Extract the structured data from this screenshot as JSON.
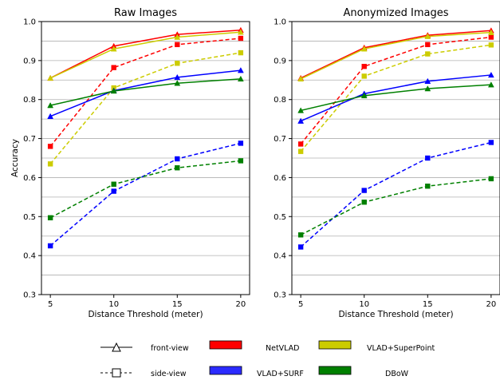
{
  "chart_data": [
    {
      "type": "line",
      "title": "Raw Images",
      "xlabel": "Distance Threshold (meter)",
      "ylabel": "Accuracy",
      "x": [
        5,
        10,
        15,
        20
      ],
      "xticks": [
        "5",
        "10",
        "15",
        "20"
      ],
      "ylim": [
        0.3,
        1.0
      ],
      "yticks": [
        "0.3",
        "0.4",
        "0.5",
        "0.6",
        "0.7",
        "0.8",
        "0.9",
        "1.0"
      ],
      "grid": "horizontal",
      "series": [
        {
          "method": "NetVLAD",
          "view": "front-view",
          "color": "#ff0000",
          "values": [
            0.855,
            0.937,
            0.967,
            0.978
          ]
        },
        {
          "method": "NetVLAD",
          "view": "side-view",
          "color": "#ff0000",
          "values": [
            0.68,
            0.882,
            0.941,
            0.957
          ]
        },
        {
          "method": "VLAD+SuperPoint",
          "view": "front-view",
          "color": "#cccc00",
          "values": [
            0.855,
            0.93,
            0.96,
            0.973
          ]
        },
        {
          "method": "VLAD+SuperPoint",
          "view": "side-view",
          "color": "#cccc00",
          "values": [
            0.635,
            0.83,
            0.893,
            0.92
          ]
        },
        {
          "method": "VLAD+SURF",
          "view": "front-view",
          "color": "#0000ff",
          "values": [
            0.757,
            0.823,
            0.857,
            0.875
          ]
        },
        {
          "method": "VLAD+SURF",
          "view": "side-view",
          "color": "#0000ff",
          "values": [
            0.425,
            0.565,
            0.648,
            0.688
          ]
        },
        {
          "method": "DBoW",
          "view": "front-view",
          "color": "#008000",
          "values": [
            0.785,
            0.822,
            0.842,
            0.853
          ]
        },
        {
          "method": "DBoW",
          "view": "side-view",
          "color": "#008000",
          "values": [
            0.497,
            0.583,
            0.625,
            0.643
          ]
        }
      ]
    },
    {
      "type": "line",
      "title": "Anonymized Images",
      "xlabel": "Distance Threshold (meter)",
      "ylabel": "",
      "x": [
        5,
        10,
        15,
        20
      ],
      "xticks": [
        "5",
        "10",
        "15",
        "20"
      ],
      "ylim": [
        0.3,
        1.0
      ],
      "yticks": [
        "0.3",
        "0.4",
        "0.5",
        "0.6",
        "0.7",
        "0.8",
        "0.9",
        "1.0"
      ],
      "grid": "horizontal",
      "series": [
        {
          "method": "NetVLAD",
          "view": "front-view",
          "color": "#ff0000",
          "values": [
            0.855,
            0.933,
            0.965,
            0.977
          ]
        },
        {
          "method": "NetVLAD",
          "view": "side-view",
          "color": "#ff0000",
          "values": [
            0.686,
            0.885,
            0.941,
            0.96
          ]
        },
        {
          "method": "VLAD+SuperPoint",
          "view": "front-view",
          "color": "#cccc00",
          "values": [
            0.853,
            0.93,
            0.962,
            0.972
          ]
        },
        {
          "method": "VLAD+SuperPoint",
          "view": "side-view",
          "color": "#cccc00",
          "values": [
            0.667,
            0.86,
            0.917,
            0.94
          ]
        },
        {
          "method": "VLAD+SURF",
          "view": "front-view",
          "color": "#0000ff",
          "values": [
            0.745,
            0.815,
            0.847,
            0.863
          ]
        },
        {
          "method": "VLAD+SURF",
          "view": "side-view",
          "color": "#0000ff",
          "values": [
            0.422,
            0.567,
            0.65,
            0.69
          ]
        },
        {
          "method": "DBoW",
          "view": "front-view",
          "color": "#008000",
          "values": [
            0.772,
            0.81,
            0.828,
            0.838
          ]
        },
        {
          "method": "DBoW",
          "view": "side-view",
          "color": "#008000",
          "values": [
            0.453,
            0.537,
            0.578,
            0.597
          ]
        }
      ]
    }
  ],
  "legend": {
    "style_entries": [
      {
        "label": "front-view",
        "marker": "triangle",
        "linestyle": "solid"
      },
      {
        "label": "side-view",
        "marker": "square",
        "linestyle": "dashed"
      }
    ],
    "method_entries": [
      {
        "label": "NetVLAD",
        "color": "#ff0000"
      },
      {
        "label": "VLAD+SuperPoint",
        "color": "#cccc00"
      },
      {
        "label": "VLAD+SURF",
        "color": "#2b2bff"
      },
      {
        "label": "DBoW",
        "color": "#008000"
      }
    ]
  }
}
